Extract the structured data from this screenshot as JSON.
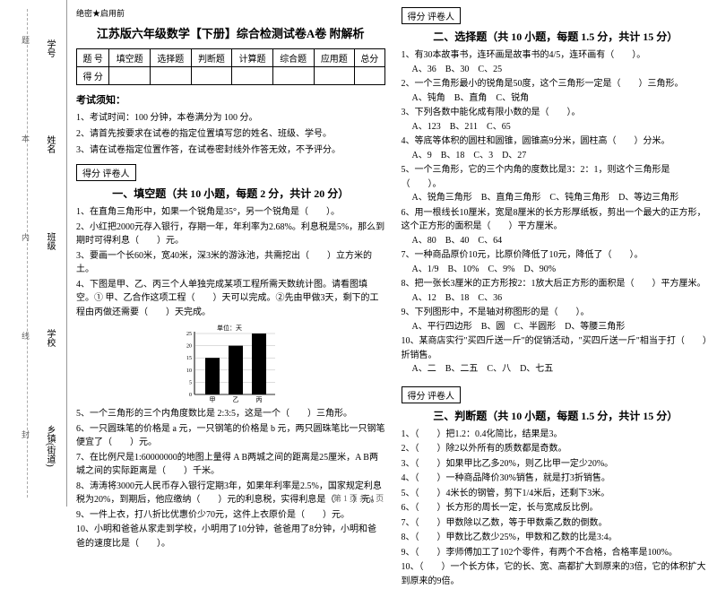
{
  "sidebar": {
    "labels": [
      "学号",
      "姓名",
      "班级",
      "学校",
      "乡镇(街道)"
    ],
    "vtext": [
      "题",
      "本",
      "内",
      "线",
      "封"
    ]
  },
  "header": {
    "secret": "绝密★启用前",
    "title": "江苏版六年级数学【下册】综合检测试卷A卷 附解析"
  },
  "scoreTable": {
    "row1": [
      "题 号",
      "填空题",
      "选择题",
      "判断题",
      "计算题",
      "综合题",
      "应用题",
      "总分"
    ],
    "row2": [
      "得 分",
      "",
      "",
      "",
      "",
      "",
      "",
      ""
    ]
  },
  "notice": {
    "title": "考试须知：",
    "items": [
      "1、考试时间：100 分钟，本卷满分为 100 分。",
      "2、请首先按要求在试卷的指定位置填写您的姓名、班级、学号。",
      "3、请在试卷指定位置作答，在试卷密封线外作答无效，不予评分。"
    ]
  },
  "section1": {
    "scoreLabel": "得分  评卷人",
    "title": "一、填空题（共 10 小题，每题 2 分，共计 20 分）",
    "questions": [
      "1、在直角三角形中，如果一个锐角是35°，另一个锐角是（　　）。",
      "2、小红把2000元存入银行，存期一年，年利率为2.68%。利息税是5%，那么到期时可得利息（　　）元。",
      "3、要画一个长60米，宽40米，深3米的游泳池，共需挖出（　　）立方米的土。",
      "4、下图是甲、乙、丙三个人单独完成某项工程所需天数统计图。请看图填空。① 甲、乙合作这项工程（　　）天可以完成。②先由甲做3天，剩下的工程由丙做还需要（　　）天完成。"
    ],
    "chart": {
      "ylabel": "单位：天",
      "ymax": 25,
      "yticks": [
        0,
        5,
        10,
        15,
        20,
        25
      ],
      "categories": [
        "甲",
        "乙",
        "丙"
      ],
      "values": [
        15,
        20,
        25
      ],
      "bar_color": "#000000",
      "grid_color": "#888888"
    },
    "questions2": [
      "5、一个三角形的三个内角度数比是 2:3:5，这是一个（　　）三角形。",
      "6、一只圆珠笔的价格是 a 元，一只钢笔的价格是 b 元，两只圆珠笔比一只钢笔便宜了（　　）元。",
      "7、在比例尺是1:60000000的地图上量得 A B两城之间的距离是25厘米，A B两城之间的实际距离是（　　）千米。",
      "8、涛涛将3000元人民币存入银行定期3年，如果年利率是2.5%，国家规定利息税为20%，到期后，他应缴纳（　　）元的利息税，实得利息是（　　）元。",
      "9、一件上衣，打八折比优惠价少70元，这件上衣原价是（　　）元。",
      "10、小明和爸爸从家走到学校，小明用了10分钟，爸爸用了8分钟，小明和爸爸的速度比是（　　）。"
    ]
  },
  "section2": {
    "scoreLabel": "得分  评卷人",
    "title": "二、选择题（共 10 小题，每题 1.5 分，共计 15 分）",
    "questions": [
      {
        "q": "1、有30本故事书，连环画是故事书的4/5，连环画有（　　）。",
        "opts": [
          "A、36",
          "B、30",
          "C、25"
        ]
      },
      {
        "q": "2、一个三角形最小的锐角是50度，这个三角形一定是（　　）三角形。",
        "opts": [
          "A、钝角",
          "B、直角",
          "C、锐角"
        ]
      },
      {
        "q": "3、下列各数中能化成有限小数的是（　　）。",
        "opts": [
          "A、123",
          "B、211",
          "C、65"
        ]
      },
      {
        "q": "4、等底等体积的圆柱和圆锥，圆锥高9分米，圆柱高（　　）分米。",
        "opts": [
          "A、9",
          "B、18",
          "C、3",
          "D、27"
        ]
      },
      {
        "q": "5、一个三角形，它的三个内角的度数比是3：2：1，则这个三角形是（　　）。",
        "opts": [
          "A、锐角三角形",
          "B、直角三角形",
          "C、钝角三角形",
          "D、等边三角形"
        ]
      },
      {
        "q": "6、用一根线长10厘米，宽是8厘米的长方形厚纸板，剪出一个最大的正方形，这个正方形的面积是（　　）平方厘米。",
        "opts": [
          "A、80",
          "B、40",
          "C、64"
        ]
      },
      {
        "q": "7、一种商品原价10元，比原价降低了10元，降低了（　　）。",
        "opts": [
          "A、1/9",
          "B、10%",
          "C、9%",
          "D、90%"
        ]
      },
      {
        "q": "8、把一张长3厘米的正方形按2：1放大后正方形的面积是（　　）平方厘米。",
        "opts": [
          "A、12",
          "B、18",
          "C、36"
        ]
      },
      {
        "q": "9、下列图形中，不是轴对称图形的是（　　）。",
        "opts": [
          "A、平行四边形",
          "B、圆",
          "C、半圆形",
          "D、等腰三角形"
        ]
      },
      {
        "q": "10、某商店实行\"买四斤送一斤\"的促销活动，\"买四斤送一斤\"相当于打（　　）折销售。",
        "opts": [
          "A、二",
          "B、二五",
          "C、八",
          "D、七五"
        ]
      }
    ]
  },
  "section3": {
    "scoreLabel": "得分  评卷人",
    "title": "三、判断题（共 10 小题，每题 1.5 分，共计 15 分）",
    "questions": [
      "1、（　　）把1.2：0.4化简比，结果是3。",
      "2、（　　）除2以外所有的质数都是奇数。",
      "3、（　　）如果甲比乙多20%，则乙比甲一定少20%。",
      "4、（　　）一种商品降价30%销售，就是打3折销售。",
      "5、（　　）4米长的钢管，剪下1/4米后，还剩下3米。",
      "6、（　　）长方形的周长一定，长与宽成反比例。",
      "7、（　　）甲数除以乙数，等于甲数乘乙数的倒数。",
      "8、（　　）甲数比乙数少25%，甲数和乙数的比是3:4。",
      "9、（　　）李师傅加工了102个零件，有两个不合格，合格率是100%。",
      "10、（　　）一个长方体，它的长、宽、高都扩大到原来的3倍，它的体积扩大到原来的9倍。"
    ]
  },
  "footer": "第 1 页 共 4 页"
}
